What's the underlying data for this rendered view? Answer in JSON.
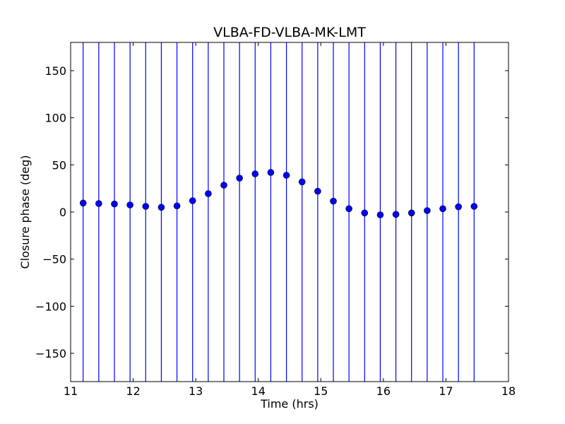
{
  "chart_data": {
    "type": "scatter",
    "title": "VLBA-FD-VLBA-MK-LMT",
    "xlabel": "Time (hrs)",
    "ylabel": "Closure phase (deg)",
    "xlim": [
      11,
      18
    ],
    "ylim": [
      -180,
      180
    ],
    "xticks": [
      11,
      12,
      13,
      14,
      15,
      16,
      17,
      18
    ],
    "xtick_labels": [
      "11",
      "12",
      "13",
      "14",
      "15",
      "16",
      "17",
      "18"
    ],
    "yticks": [
      -150,
      -100,
      -50,
      0,
      50,
      100,
      150
    ],
    "ytick_labels": [
      "−150",
      "−100",
      "−50",
      "0",
      "50",
      "100",
      "150"
    ],
    "grid": false,
    "legend": "none",
    "error_bars": "full range (-180 to 180)",
    "marker_color": "#0000ff",
    "points": [
      {
        "x": 11.2,
        "y": 9.5
      },
      {
        "x": 11.45,
        "y": 9
      },
      {
        "x": 11.7,
        "y": 8.5
      },
      {
        "x": 11.95,
        "y": 7.5
      },
      {
        "x": 12.2,
        "y": 6
      },
      {
        "x": 12.45,
        "y": 5
      },
      {
        "x": 12.7,
        "y": 6.5
      },
      {
        "x": 12.95,
        "y": 12
      },
      {
        "x": 13.2,
        "y": 19.5
      },
      {
        "x": 13.45,
        "y": 28.5
      },
      {
        "x": 13.7,
        "y": 36
      },
      {
        "x": 13.95,
        "y": 40.5
      },
      {
        "x": 14.2,
        "y": 42
      },
      {
        "x": 14.45,
        "y": 39
      },
      {
        "x": 14.7,
        "y": 32
      },
      {
        "x": 14.95,
        "y": 22
      },
      {
        "x": 15.2,
        "y": 11.5
      },
      {
        "x": 15.45,
        "y": 3.5
      },
      {
        "x": 15.7,
        "y": -1
      },
      {
        "x": 15.95,
        "y": -3
      },
      {
        "x": 16.2,
        "y": -2.5
      },
      {
        "x": 16.45,
        "y": -1
      },
      {
        "x": 16.7,
        "y": 1.5
      },
      {
        "x": 16.95,
        "y": 3.5
      },
      {
        "x": 17.2,
        "y": 5.5
      },
      {
        "x": 17.45,
        "y": 6
      }
    ]
  }
}
